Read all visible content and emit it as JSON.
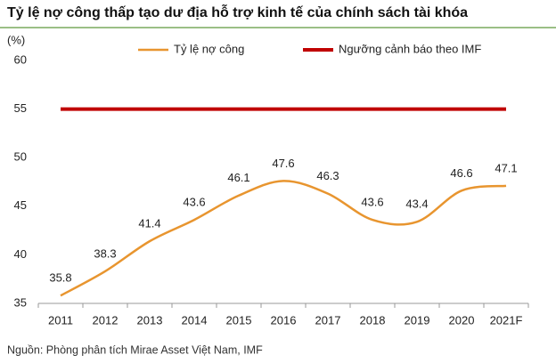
{
  "chart_data": {
    "type": "line",
    "title": "Tỷ lệ nợ công thấp tạo dư địa hỗ trợ kinh tế của chính sách tài khóa",
    "y_label": "(%)",
    "source": "Nguồn: Phòng phân tích Mirae Asset Việt Nam, IMF",
    "categories": [
      "2011",
      "2012",
      "2013",
      "2014",
      "2015",
      "2016",
      "2017",
      "2018",
      "2019",
      "2020",
      "2021F"
    ],
    "series": [
      {
        "name": "Tỷ lệ nợ công",
        "color": "#e8952f",
        "smooth": true,
        "data_labels": true,
        "values": [
          35.8,
          38.3,
          41.4,
          43.6,
          46.1,
          47.6,
          46.3,
          43.6,
          43.4,
          46.6,
          47.1
        ]
      },
      {
        "name": "Ngưỡng cảnh báo theo IMF",
        "color": "#c00000",
        "smooth": false,
        "data_labels": false,
        "values": [
          55,
          55,
          55,
          55,
          55,
          55,
          55,
          55,
          55,
          55,
          55
        ]
      }
    ],
    "ylim": [
      35,
      60
    ],
    "yticks": [
      35,
      40,
      45,
      50,
      55,
      60
    ],
    "grid": false
  }
}
